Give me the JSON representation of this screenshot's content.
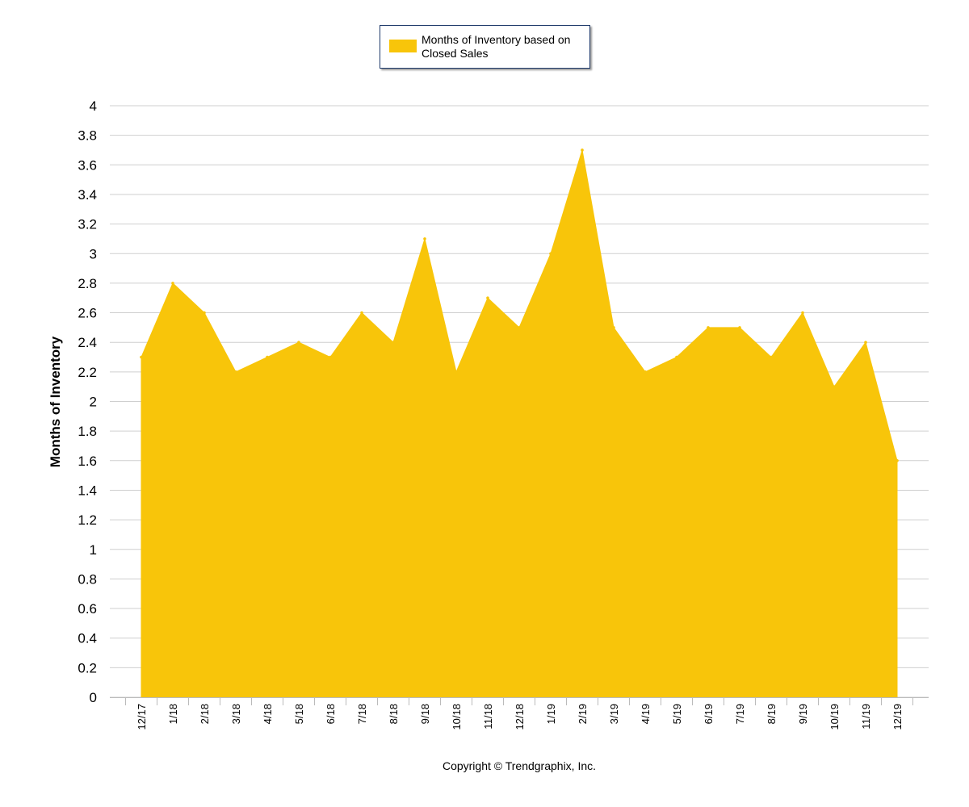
{
  "chart_data": {
    "type": "area",
    "title": "",
    "xlabel": "",
    "ylabel": "Months of Inventory",
    "ylim": [
      0,
      4
    ],
    "yticks": [
      "0",
      "0.2",
      "0.4",
      "0.6",
      "0.8",
      "1",
      "1.2",
      "1.4",
      "1.6",
      "1.8",
      "2",
      "2.2",
      "2.4",
      "2.6",
      "2.8",
      "3",
      "3.2",
      "3.4",
      "3.6",
      "3.8",
      "4"
    ],
    "grid": true,
    "legend_position": "top",
    "categories": [
      "12/17",
      "1/18",
      "2/18",
      "3/18",
      "4/18",
      "5/18",
      "6/18",
      "7/18",
      "8/18",
      "9/18",
      "10/18",
      "11/18",
      "12/18",
      "1/19",
      "2/19",
      "3/19",
      "4/19",
      "5/19",
      "6/19",
      "7/19",
      "8/19",
      "9/19",
      "10/19",
      "11/19",
      "12/19"
    ],
    "series": [
      {
        "name": "Months of Inventory based on Closed Sales",
        "color": "#f8c50a",
        "values": [
          2.3,
          2.8,
          2.6,
          2.2,
          2.3,
          2.4,
          2.3,
          2.6,
          2.4,
          3.1,
          2.2,
          2.7,
          2.5,
          3.0,
          3.7,
          2.5,
          2.2,
          2.3,
          2.5,
          2.5,
          2.3,
          2.6,
          2.1,
          2.4,
          1.6
        ]
      }
    ]
  },
  "legend": {
    "label": "Months of Inventory based on Closed Sales"
  },
  "footer": {
    "copyright": "Copyright © Trendgraphix, Inc."
  }
}
